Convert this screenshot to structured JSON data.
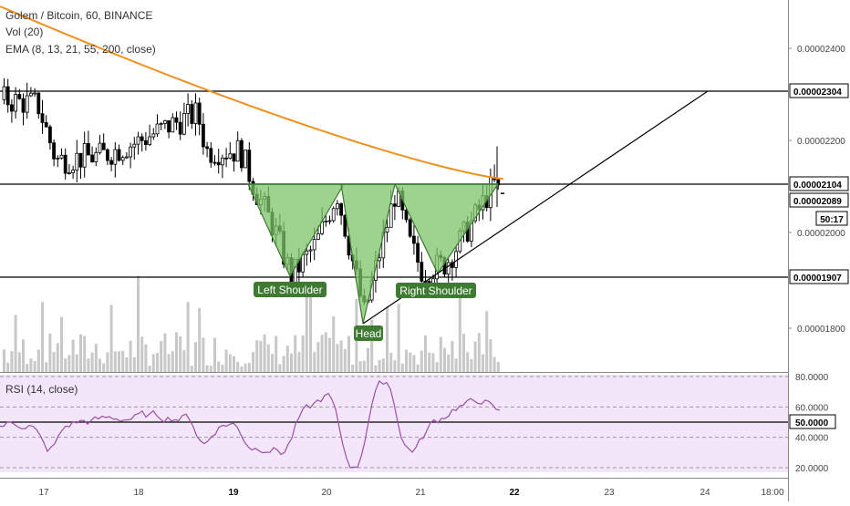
{
  "header": {
    "symbol": "Golem / Bitcoin, 60, BINANCE",
    "volume": "Vol (20)",
    "ema": "EMA (8, 13, 21, 55, 200, close)"
  },
  "rsi": {
    "title": "RSI (14, close)",
    "levels": [
      80,
      60,
      50,
      40,
      20
    ]
  },
  "colors": {
    "ema": "#f0901e",
    "pattern_fill": "#7cc46a",
    "pattern_stroke": "#3a7a2e",
    "label_bg": "#3f7a33",
    "rsi_bg": "#f3e6fb",
    "rsi_line": "#9c4fa6",
    "volume": "#b5b5b5"
  },
  "chart_data": {
    "type": "candlestick",
    "price_axis": {
      "ticks": [
        "0.00002400",
        "0.00002200",
        "0.00002000",
        "0.00001800"
      ],
      "highlighted": [
        "0.00002304",
        "0.00002104",
        "0.00002089",
        "0.00001907"
      ],
      "countdown": "50:17"
    },
    "x_axis": {
      "ticks": [
        "17",
        "18",
        "19",
        "20",
        "21",
        "22",
        "23",
        "24",
        "18:00"
      ]
    },
    "horizontal_levels": [
      2.304e-05,
      2.104e-05,
      1.907e-05
    ],
    "ema_200": {
      "from": 2.49e-05,
      "to": 2.12e-05
    },
    "pattern": {
      "name": "Inverse Head and Shoulders",
      "labels": {
        "left_shoulder": "Left Shoulder",
        "head": "Head",
        "right_shoulder": "Right Shoulder"
      },
      "neckline": 2.104e-05,
      "left_shoulder_low": 1.91e-05,
      "head_low": 1.82e-05,
      "right_shoulder_low": 1.92e-05
    },
    "trendline": {
      "start": 1.82e-05,
      "end": 2.304e-05
    },
    "last_price": 2.089e-05,
    "rsi": {
      "min": 20,
      "max": 80,
      "last": 64
    },
    "ylim": [
      1.75e-05,
      2.52e-05
    ]
  }
}
